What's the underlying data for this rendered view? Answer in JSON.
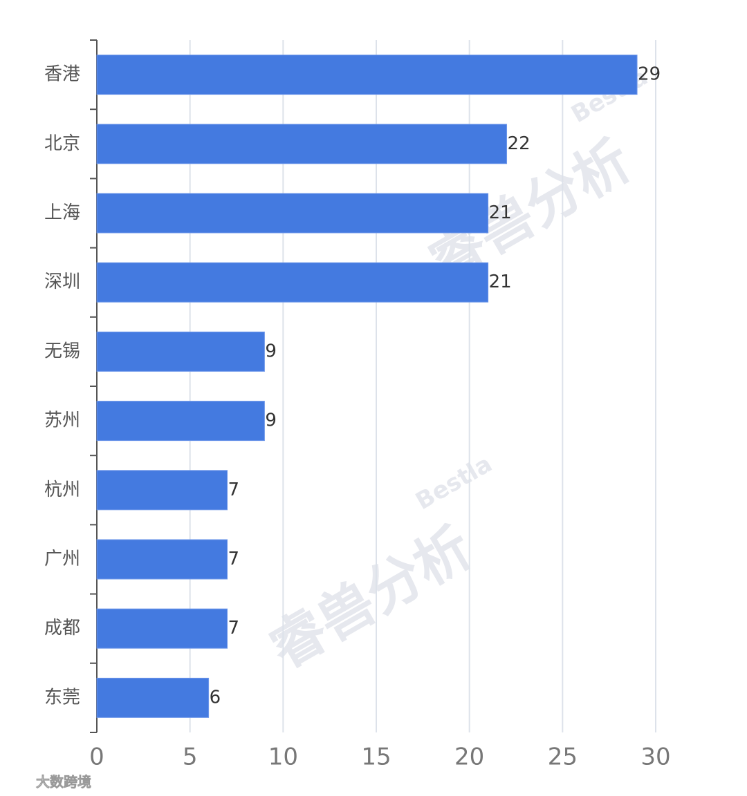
{
  "chart_data": {
    "type": "bar",
    "orientation": "horizontal",
    "categories": [
      "香港",
      "北京",
      "上海",
      "深圳",
      "无锡",
      "苏州",
      "杭州",
      "广州",
      "成都",
      "东莞"
    ],
    "values": [
      29,
      22,
      21,
      21,
      9,
      9,
      7,
      7,
      7,
      6
    ],
    "color": "#447ae0",
    "xlim": [
      0,
      30
    ],
    "xticks": [
      0,
      5,
      10,
      15,
      20,
      25,
      30
    ],
    "grid": true,
    "watermark": "睿兽分析",
    "watermark_brand": "Bestla",
    "source": "大数跨境"
  }
}
